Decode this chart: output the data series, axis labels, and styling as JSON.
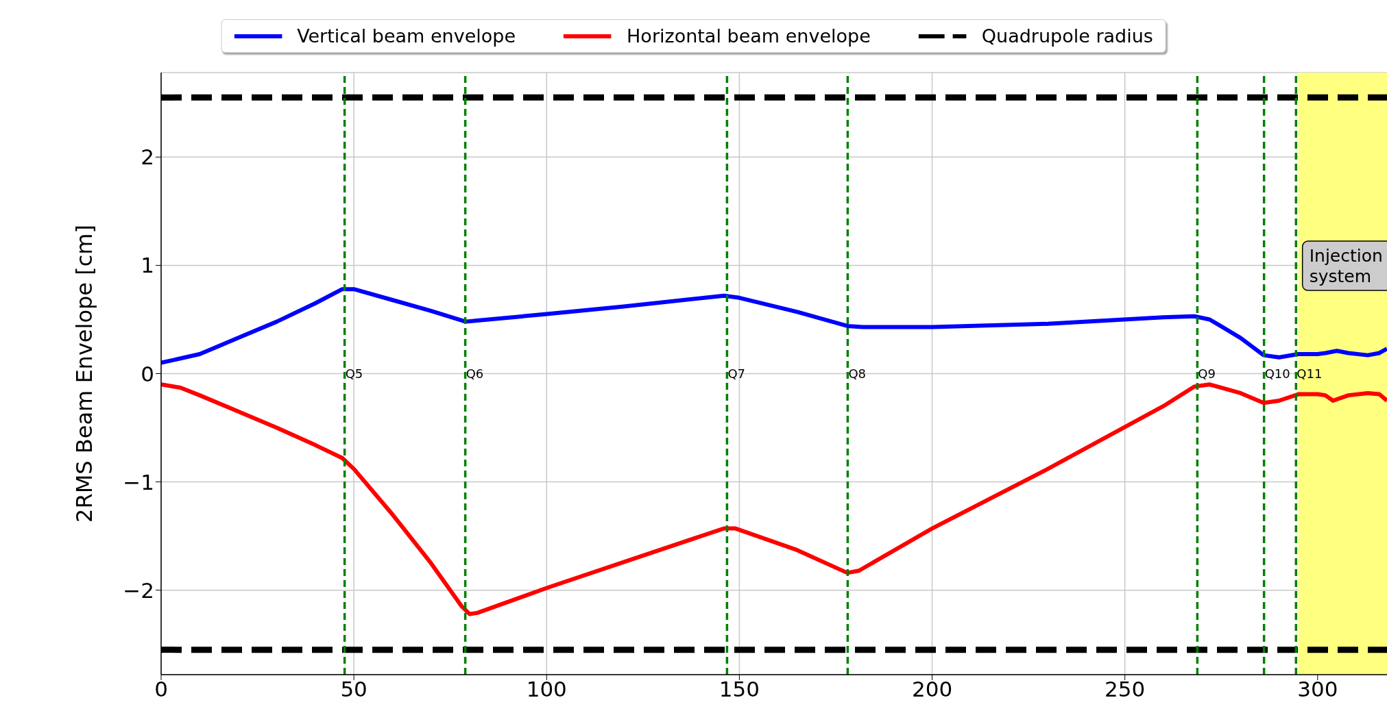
{
  "chart_data": {
    "type": "line",
    "ylabel": "2RMS Beam Envelope [cm]",
    "xlim": [
      0,
      318
    ],
    "ylim": [
      -2.78,
      2.78
    ],
    "xticks": [
      0,
      50,
      100,
      150,
      200,
      250,
      300
    ],
    "yticks": [
      {
        "value": -2,
        "label": "−2"
      },
      {
        "value": -1,
        "label": "−1"
      },
      0,
      1,
      2
    ],
    "grid": true,
    "legend": "top",
    "marker": "none",
    "series": [
      {
        "name": "Vertical beam envelope",
        "color": "#0000ff",
        "line_style": "solid",
        "x": [
          0,
          10,
          20,
          30,
          40,
          47,
          50,
          60,
          70,
          79,
          82,
          100,
          120,
          146,
          150,
          165,
          178,
          182,
          200,
          230,
          260,
          268,
          272,
          280,
          286,
          290,
          295,
          300,
          302,
          305,
          308,
          313,
          316,
          318
        ],
        "values": [
          0.1,
          0.18,
          0.33,
          0.48,
          0.65,
          0.78,
          0.78,
          0.68,
          0.58,
          0.48,
          0.49,
          0.55,
          0.62,
          0.72,
          0.7,
          0.57,
          0.44,
          0.43,
          0.43,
          0.46,
          0.52,
          0.53,
          0.5,
          0.33,
          0.17,
          0.15,
          0.18,
          0.18,
          0.19,
          0.21,
          0.19,
          0.17,
          0.19,
          0.23
        ]
      },
      {
        "name": "Horizontal beam envelope",
        "color": "#ff0000",
        "line_style": "solid",
        "x": [
          0,
          5,
          10,
          20,
          30,
          40,
          47,
          50,
          60,
          70,
          78,
          80,
          82,
          100,
          120,
          146,
          149,
          165,
          178,
          181,
          200,
          230,
          260,
          268,
          272,
          280,
          286,
          290,
          295,
          300,
          302,
          304,
          308,
          313,
          316,
          318
        ],
        "values": [
          -0.1,
          -0.13,
          -0.2,
          -0.35,
          -0.5,
          -0.66,
          -0.78,
          -0.88,
          -1.3,
          -1.75,
          -2.15,
          -2.22,
          -2.21,
          -1.98,
          -1.74,
          -1.43,
          -1.43,
          -1.63,
          -1.84,
          -1.82,
          -1.43,
          -0.88,
          -0.3,
          -0.12,
          -0.1,
          -0.18,
          -0.27,
          -0.25,
          -0.19,
          -0.19,
          -0.2,
          -0.25,
          -0.2,
          -0.18,
          -0.19,
          -0.25
        ]
      },
      {
        "name": "Quadrupole radius",
        "color": "#000000",
        "line_style": "dashed",
        "x": [
          0,
          318
        ],
        "values": [
          2.55,
          2.55
        ]
      },
      {
        "color": "#000000",
        "line_style": "dashed",
        "x": [
          0,
          318
        ],
        "values": [
          -2.55,
          -2.55
        ]
      }
    ],
    "ref_lines": [
      {
        "axis": "x",
        "value": 47.6,
        "label": "Q5",
        "color": "#008000",
        "line_style": "dashed"
      },
      {
        "axis": "x",
        "value": 78.9,
        "label": "Q6",
        "color": "#008000",
        "line_style": "dashed"
      },
      {
        "axis": "x",
        "value": 146.8,
        "label": "Q7",
        "color": "#008000",
        "line_style": "dashed"
      },
      {
        "axis": "x",
        "value": 178.1,
        "label": "Q8",
        "color": "#008000",
        "line_style": "dashed"
      },
      {
        "axis": "x",
        "value": 268.8,
        "label": "Q9",
        "color": "#008000",
        "line_style": "dashed"
      },
      {
        "axis": "x",
        "value": 286.1,
        "label": "Q10",
        "color": "#008000",
        "line_style": "dashed"
      },
      {
        "axis": "x",
        "value": 294.4,
        "label": "Q11",
        "color": "#008000",
        "line_style": "dashed"
      }
    ],
    "bands": [
      {
        "axis": "x",
        "from": 295,
        "to": 318,
        "label": "Injection\nsystem",
        "color": "#ffff80"
      }
    ]
  }
}
